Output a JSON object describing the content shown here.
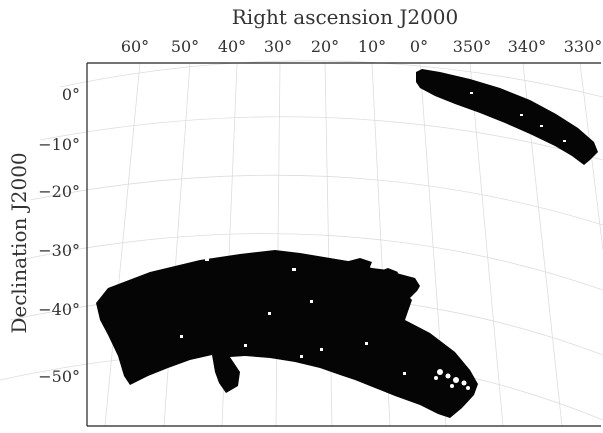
{
  "figure": {
    "top_axis_title": "Right ascension J2000",
    "left_axis_title": "Declination J2000"
  },
  "ra_ticks": [
    "60°",
    "50°",
    "40°",
    "30°",
    "20°",
    "10°",
    "0°",
    "350°",
    "340°",
    "330°"
  ],
  "dec_ticks": [
    "0°",
    "−10°",
    "−20°",
    "−30°",
    "−40°",
    "−50°"
  ],
  "colors": {
    "footprint": "#050505",
    "grid": "#dddddd",
    "axis": "#222222"
  }
}
